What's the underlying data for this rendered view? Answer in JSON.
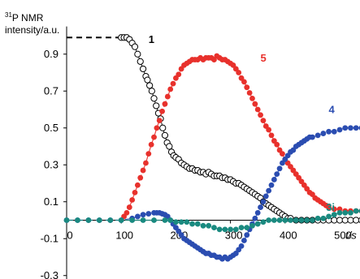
{
  "chart_data": {
    "type": "scatter",
    "ylabel_sup": "31",
    "ylabel_main": "P NMR",
    "ylabel_line2": "intensity/a.u.",
    "xlabel": "t/s",
    "xlim": [
      0,
      560
    ],
    "ylim": [
      -0.3,
      1.05
    ],
    "x_ticks": [
      0,
      100,
      200,
      300,
      400,
      500
    ],
    "y_ticks": [
      0.9,
      0.7,
      0.5,
      0.3,
      0.1,
      -0.1,
      -0.3
    ],
    "x_tick_labels": [
      "0",
      "100",
      "200",
      "300",
      "400",
      "500"
    ],
    "y_tick_labels": [
      "0.9",
      "0.7",
      "0.5",
      "0.3",
      "0.1",
      "-0.1",
      "-0.3"
    ],
    "grid": false,
    "series": [
      {
        "name": "1",
        "color": "#000000",
        "marker": "open-circle",
        "points": [
          [
            100,
            0.99
          ],
          [
            105,
            0.99
          ],
          [
            110,
            0.99
          ],
          [
            115,
            0.98
          ],
          [
            120,
            0.96
          ],
          [
            125,
            0.94
          ],
          [
            130,
            0.9
          ],
          [
            135,
            0.86
          ],
          [
            140,
            0.82
          ],
          [
            145,
            0.78
          ],
          [
            148,
            0.76
          ],
          [
            152,
            0.73
          ],
          [
            156,
            0.7
          ],
          [
            160,
            0.66
          ],
          [
            164,
            0.62
          ],
          [
            168,
            0.58
          ],
          [
            172,
            0.55
          ],
          [
            176,
            0.5
          ],
          [
            180,
            0.46
          ],
          [
            184,
            0.42
          ],
          [
            188,
            0.4
          ],
          [
            192,
            0.37
          ],
          [
            196,
            0.35
          ],
          [
            200,
            0.34
          ],
          [
            205,
            0.33
          ],
          [
            210,
            0.31
          ],
          [
            215,
            0.3
          ],
          [
            220,
            0.29
          ],
          [
            225,
            0.28
          ],
          [
            230,
            0.28
          ],
          [
            235,
            0.27
          ],
          [
            240,
            0.27
          ],
          [
            245,
            0.26
          ],
          [
            250,
            0.26
          ],
          [
            255,
            0.25
          ],
          [
            260,
            0.26
          ],
          [
            265,
            0.25
          ],
          [
            270,
            0.24
          ],
          [
            275,
            0.24
          ],
          [
            280,
            0.24
          ],
          [
            285,
            0.23
          ],
          [
            290,
            0.23
          ],
          [
            295,
            0.22
          ],
          [
            300,
            0.22
          ],
          [
            305,
            0.21
          ],
          [
            310,
            0.2
          ],
          [
            315,
            0.2
          ],
          [
            320,
            0.19
          ],
          [
            325,
            0.18
          ],
          [
            330,
            0.17
          ],
          [
            335,
            0.16
          ],
          [
            340,
            0.15
          ],
          [
            345,
            0.14
          ],
          [
            350,
            0.13
          ],
          [
            355,
            0.12
          ],
          [
            360,
            0.1
          ],
          [
            365,
            0.09
          ],
          [
            370,
            0.08
          ],
          [
            375,
            0.07
          ],
          [
            380,
            0.06
          ],
          [
            385,
            0.05
          ],
          [
            390,
            0.04
          ],
          [
            395,
            0.03
          ],
          [
            400,
            0.02
          ],
          [
            405,
            0.01
          ],
          [
            410,
            0.01
          ],
          [
            420,
            0.0
          ],
          [
            430,
            0.0
          ],
          [
            440,
            0.0
          ],
          [
            450,
            0.0
          ],
          [
            460,
            0.0
          ],
          [
            470,
            0.0
          ],
          [
            480,
            0.0
          ],
          [
            490,
            0.0
          ],
          [
            500,
            0.0
          ],
          [
            510,
            0.0
          ],
          [
            520,
            0.0
          ],
          [
            530,
            0.0
          ],
          [
            540,
            0.0
          ]
        ],
        "dashed_start": [
          [
            0,
            0.99
          ],
          [
            100,
            0.99
          ]
        ]
      },
      {
        "name": "5",
        "color": "#e8312c",
        "marker": "filled-circle",
        "points": [
          [
            105,
            0.02
          ],
          [
            110,
            0.04
          ],
          [
            115,
            0.07
          ],
          [
            120,
            0.11
          ],
          [
            125,
            0.15
          ],
          [
            130,
            0.19
          ],
          [
            135,
            0.23
          ],
          [
            140,
            0.27
          ],
          [
            145,
            0.31
          ],
          [
            150,
            0.36
          ],
          [
            155,
            0.41
          ],
          [
            160,
            0.45
          ],
          [
            165,
            0.5
          ],
          [
            170,
            0.54
          ],
          [
            175,
            0.59
          ],
          [
            180,
            0.63
          ],
          [
            185,
            0.67
          ],
          [
            190,
            0.71
          ],
          [
            195,
            0.74
          ],
          [
            200,
            0.77
          ],
          [
            205,
            0.79
          ],
          [
            210,
            0.82
          ],
          [
            215,
            0.84
          ],
          [
            220,
            0.85
          ],
          [
            225,
            0.86
          ],
          [
            230,
            0.87
          ],
          [
            235,
            0.87
          ],
          [
            240,
            0.87
          ],
          [
            245,
            0.88
          ],
          [
            250,
            0.87
          ],
          [
            255,
            0.88
          ],
          [
            260,
            0.88
          ],
          [
            265,
            0.88
          ],
          [
            270,
            0.87
          ],
          [
            275,
            0.89
          ],
          [
            280,
            0.88
          ],
          [
            285,
            0.87
          ],
          [
            290,
            0.87
          ],
          [
            295,
            0.86
          ],
          [
            300,
            0.85
          ],
          [
            305,
            0.84
          ],
          [
            310,
            0.82
          ],
          [
            315,
            0.8
          ],
          [
            320,
            0.77
          ],
          [
            325,
            0.75
          ],
          [
            330,
            0.72
          ],
          [
            335,
            0.69
          ],
          [
            340,
            0.66
          ],
          [
            345,
            0.63
          ],
          [
            350,
            0.6
          ],
          [
            355,
            0.57
          ],
          [
            360,
            0.54
          ],
          [
            365,
            0.51
          ],
          [
            370,
            0.49
          ],
          [
            375,
            0.46
          ],
          [
            380,
            0.43
          ],
          [
            385,
            0.41
          ],
          [
            390,
            0.38
          ],
          [
            395,
            0.36
          ],
          [
            400,
            0.33
          ],
          [
            405,
            0.31
          ],
          [
            410,
            0.29
          ],
          [
            415,
            0.27
          ],
          [
            420,
            0.25
          ],
          [
            425,
            0.23
          ],
          [
            430,
            0.21
          ],
          [
            435,
            0.19
          ],
          [
            440,
            0.17
          ],
          [
            445,
            0.15
          ],
          [
            450,
            0.14
          ],
          [
            455,
            0.12
          ],
          [
            460,
            0.11
          ],
          [
            465,
            0.1
          ],
          [
            470,
            0.09
          ],
          [
            475,
            0.08
          ],
          [
            480,
            0.07
          ],
          [
            490,
            0.06
          ],
          [
            500,
            0.06
          ],
          [
            510,
            0.05
          ],
          [
            520,
            0.05
          ],
          [
            530,
            0.05
          ],
          [
            540,
            0.05
          ]
        ]
      },
      {
        "name": "4",
        "color": "#2b4db1",
        "marker": "filled-circle",
        "points": [
          [
            0,
            0.0
          ],
          [
            20,
            0.0
          ],
          [
            40,
            0.0
          ],
          [
            60,
            0.0
          ],
          [
            80,
            0.0
          ],
          [
            100,
            0.0
          ],
          [
            120,
            0.01
          ],
          [
            130,
            0.02
          ],
          [
            140,
            0.03
          ],
          [
            150,
            0.035
          ],
          [
            160,
            0.04
          ],
          [
            165,
            0.04
          ],
          [
            170,
            0.04
          ],
          [
            175,
            0.035
          ],
          [
            180,
            0.03
          ],
          [
            185,
            0.02
          ],
          [
            190,
            0.0
          ],
          [
            195,
            -0.02
          ],
          [
            200,
            -0.04
          ],
          [
            205,
            -0.06
          ],
          [
            210,
            -0.08
          ],
          [
            215,
            -0.1
          ],
          [
            220,
            -0.11
          ],
          [
            225,
            -0.12
          ],
          [
            230,
            -0.13
          ],
          [
            235,
            -0.14
          ],
          [
            240,
            -0.15
          ],
          [
            245,
            -0.16
          ],
          [
            250,
            -0.17
          ],
          [
            255,
            -0.18
          ],
          [
            260,
            -0.18
          ],
          [
            265,
            -0.19
          ],
          [
            270,
            -0.19
          ],
          [
            275,
            -0.2
          ],
          [
            280,
            -0.2
          ],
          [
            285,
            -0.21
          ],
          [
            290,
            -0.2
          ],
          [
            295,
            -0.21
          ],
          [
            300,
            -0.2
          ],
          [
            305,
            -0.19
          ],
          [
            310,
            -0.18
          ],
          [
            315,
            -0.16
          ],
          [
            320,
            -0.14
          ],
          [
            325,
            -0.11
          ],
          [
            330,
            -0.08
          ],
          [
            335,
            -0.05
          ],
          [
            340,
            -0.02
          ],
          [
            345,
            0.01
          ],
          [
            350,
            0.04
          ],
          [
            355,
            0.07
          ],
          [
            360,
            0.1
          ],
          [
            365,
            0.13
          ],
          [
            370,
            0.16
          ],
          [
            375,
            0.19
          ],
          [
            380,
            0.22
          ],
          [
            385,
            0.25
          ],
          [
            390,
            0.28
          ],
          [
            395,
            0.31
          ],
          [
            400,
            0.33
          ],
          [
            405,
            0.35
          ],
          [
            410,
            0.37
          ],
          [
            415,
            0.38
          ],
          [
            420,
            0.4
          ],
          [
            425,
            0.41
          ],
          [
            430,
            0.42
          ],
          [
            435,
            0.43
          ],
          [
            440,
            0.44
          ],
          [
            445,
            0.45
          ],
          [
            450,
            0.45
          ],
          [
            460,
            0.46
          ],
          [
            470,
            0.47
          ],
          [
            480,
            0.48
          ],
          [
            490,
            0.48
          ],
          [
            500,
            0.49
          ],
          [
            510,
            0.5
          ],
          [
            520,
            0.5
          ],
          [
            530,
            0.5
          ],
          [
            540,
            0.5
          ]
        ]
      },
      {
        "name": "3i",
        "color": "#1a8a80",
        "marker": "filled-circle",
        "points": [
          [
            0,
            0.0
          ],
          [
            20,
            0.0
          ],
          [
            40,
            0.0
          ],
          [
            60,
            0.0
          ],
          [
            80,
            0.0
          ],
          [
            100,
            0.0
          ],
          [
            120,
            0.0
          ],
          [
            140,
            0.0
          ],
          [
            160,
            0.0
          ],
          [
            180,
            0.0
          ],
          [
            190,
            0.0
          ],
          [
            200,
            -0.01
          ],
          [
            210,
            -0.01
          ],
          [
            220,
            -0.01
          ],
          [
            230,
            -0.02
          ],
          [
            240,
            -0.02
          ],
          [
            250,
            -0.03
          ],
          [
            260,
            -0.03
          ],
          [
            270,
            -0.04
          ],
          [
            280,
            -0.05
          ],
          [
            290,
            -0.05
          ],
          [
            300,
            -0.05
          ],
          [
            310,
            -0.05
          ],
          [
            320,
            -0.04
          ],
          [
            330,
            -0.04
          ],
          [
            340,
            -0.03
          ],
          [
            350,
            -0.02
          ],
          [
            360,
            -0.01
          ],
          [
            370,
            0.0
          ],
          [
            380,
            0.0
          ],
          [
            390,
            0.0
          ],
          [
            400,
            0.0
          ],
          [
            410,
            0.0
          ],
          [
            420,
            0.0
          ],
          [
            430,
            0.0
          ],
          [
            440,
            0.0
          ],
          [
            450,
            0.0
          ],
          [
            460,
            0.01
          ],
          [
            470,
            0.01
          ],
          [
            480,
            0.02
          ],
          [
            490,
            0.03
          ],
          [
            500,
            0.04
          ],
          [
            510,
            0.04
          ],
          [
            520,
            0.04
          ],
          [
            530,
            0.05
          ],
          [
            540,
            0.05
          ]
        ]
      }
    ],
    "series_labels": [
      {
        "text": "1",
        "x": 150,
        "y": 0.96,
        "color": "#000000"
      },
      {
        "text": "5",
        "x": 355,
        "y": 0.86,
        "color": "#e8312c"
      },
      {
        "text": "4",
        "x": 480,
        "y": 0.58,
        "color": "#2b4db1"
      },
      {
        "text": "3i",
        "x": 475,
        "y": 0.05,
        "color": "#1a8a80"
      }
    ]
  }
}
